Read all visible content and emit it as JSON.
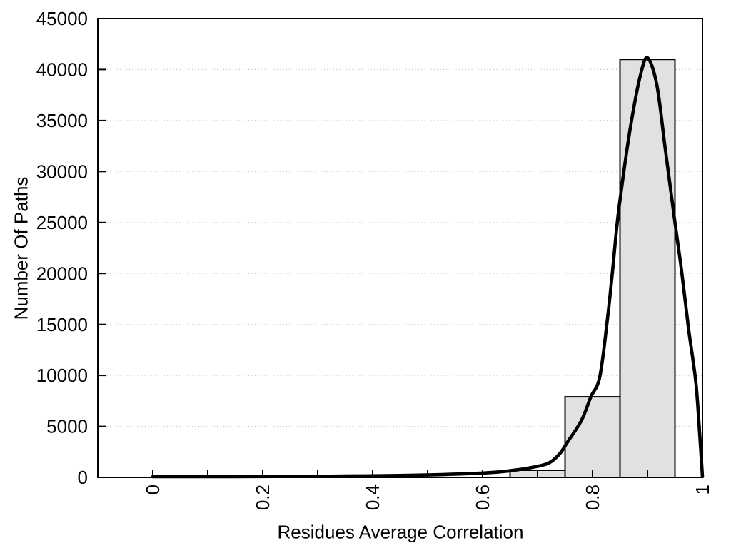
{
  "chart_data": {
    "type": "histogram+line",
    "title": "",
    "xlabel": "Residues Average Correlation",
    "ylabel": "Number Of Paths",
    "xlim": [
      -0.1,
      1.0
    ],
    "ylim": [
      0,
      45000
    ],
    "grid": "horizontal-dotted",
    "legend": "none",
    "xticks": [
      {
        "v": 0.0,
        "label": "0"
      },
      {
        "v": 0.1,
        "label": ""
      },
      {
        "v": 0.2,
        "label": "0.2"
      },
      {
        "v": 0.3,
        "label": ""
      },
      {
        "v": 0.4,
        "label": "0.4"
      },
      {
        "v": 0.5,
        "label": ""
      },
      {
        "v": 0.6,
        "label": "0.6"
      },
      {
        "v": 0.7,
        "label": ""
      },
      {
        "v": 0.8,
        "label": "0.8"
      },
      {
        "v": 0.9,
        "label": ""
      },
      {
        "v": 1.0,
        "label": "1"
      }
    ],
    "yticks": [
      {
        "v": 0,
        "label": "0"
      },
      {
        "v": 5000,
        "label": "5000"
      },
      {
        "v": 10000,
        "label": "10000"
      },
      {
        "v": 15000,
        "label": "15000"
      },
      {
        "v": 20000,
        "label": "20000"
      },
      {
        "v": 25000,
        "label": "25000"
      },
      {
        "v": 30000,
        "label": "30000"
      },
      {
        "v": 35000,
        "label": "35000"
      },
      {
        "v": 40000,
        "label": "40000"
      },
      {
        "v": 45000,
        "label": "45000"
      }
    ],
    "bars": [
      {
        "x0": 0.65,
        "x1": 0.75,
        "value": 700
      },
      {
        "x0": 0.75,
        "x1": 0.85,
        "value": 7900
      },
      {
        "x0": 0.85,
        "x1": 0.95,
        "value": 41000
      }
    ],
    "curve_points": [
      [
        0.0,
        60
      ],
      [
        0.05,
        65
      ],
      [
        0.1,
        70
      ],
      [
        0.15,
        75
      ],
      [
        0.2,
        85
      ],
      [
        0.25,
        95
      ],
      [
        0.3,
        110
      ],
      [
        0.35,
        130
      ],
      [
        0.4,
        155
      ],
      [
        0.45,
        190
      ],
      [
        0.5,
        240
      ],
      [
        0.55,
        320
      ],
      [
        0.6,
        430
      ],
      [
        0.63,
        540
      ],
      [
        0.66,
        720
      ],
      [
        0.69,
        980
      ],
      [
        0.72,
        1400
      ],
      [
        0.74,
        2300
      ],
      [
        0.755,
        3500
      ],
      [
        0.78,
        5600
      ],
      [
        0.797,
        7900
      ],
      [
        0.813,
        9800
      ],
      [
        0.826,
        15000
      ],
      [
        0.836,
        20000
      ],
      [
        0.845,
        25000
      ],
      [
        0.857,
        30000
      ],
      [
        0.871,
        35000
      ],
      [
        0.887,
        39400
      ],
      [
        0.9,
        41150
      ],
      [
        0.917,
        38500
      ],
      [
        0.932,
        32400
      ],
      [
        0.95,
        25000
      ],
      [
        0.962,
        20300
      ],
      [
        0.975,
        14500
      ],
      [
        0.988,
        9300
      ],
      [
        0.995,
        4200
      ],
      [
        1.0,
        0
      ]
    ],
    "colors": {
      "background": "#ffffff",
      "bar_fill": "#e1e1e1",
      "bar_edge": "#000000",
      "curve": "#000000",
      "grid": "#bdbdbd",
      "axis": "#000000",
      "text": "#000000"
    }
  }
}
